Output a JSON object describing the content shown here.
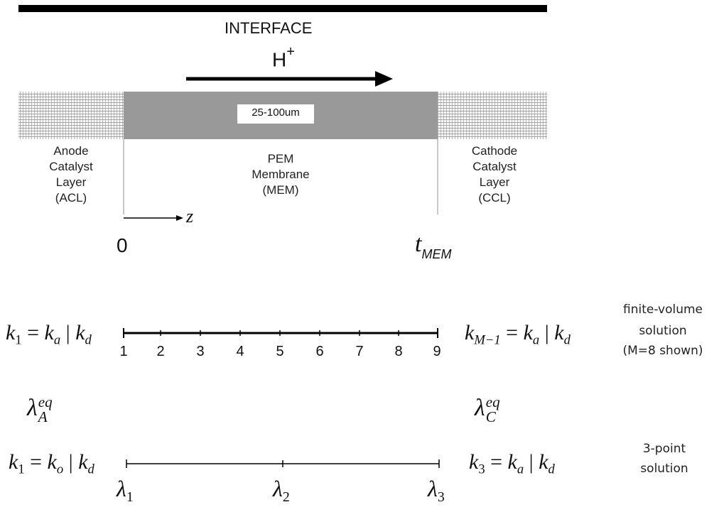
{
  "header": {
    "interface_label": "INTERFACE",
    "proton_label": "H",
    "proton_charge": "+"
  },
  "membrane": {
    "thickness_label": "25-100um"
  },
  "regions": {
    "anode": [
      "Anode",
      "Catalyst",
      "Layer",
      "(ACL)"
    ],
    "membrane": [
      "PEM",
      "Membrane",
      "(MEM)"
    ],
    "cathode": [
      "Cathode",
      "Catalyst",
      "Layer",
      "(CCL)"
    ]
  },
  "axis": {
    "variable": "z",
    "origin_label": "0",
    "end_label_base": "t",
    "end_label_sub": "MEM"
  },
  "finite_volume": {
    "left_bc": {
      "k": "k",
      "k_sub": "1",
      "eq": "=",
      "ka": "k",
      "ka_sub": "a",
      "sep": "|",
      "kd": "k",
      "kd_sub": "d"
    },
    "right_bc": {
      "k": "k",
      "k_sub": "M−1",
      "eq": "=",
      "ka": "k",
      "ka_sub": "a",
      "sep": "|",
      "kd": "k",
      "kd_sub": "d"
    },
    "node_numbers": [
      "1",
      "2",
      "3",
      "4",
      "5",
      "6",
      "7",
      "8",
      "9"
    ],
    "lambda_left": {
      "base": "λ",
      "sup": "eq",
      "sub": "A"
    },
    "lambda_right": {
      "base": "λ",
      "sup": "eq",
      "sub": "C"
    },
    "note": [
      "finite-volume",
      "solution",
      "(M=8 shown)"
    ]
  },
  "three_point": {
    "left_bc": {
      "k": "k",
      "k_sub": "1",
      "eq": "=",
      "ka": "k",
      "ka_sub": "o",
      "sep": "|",
      "kd": "k",
      "kd_sub": "d"
    },
    "right_bc": {
      "k": "k",
      "k_sub": "3",
      "eq": "=",
      "ka": "k",
      "ka_sub": "a",
      "sep": "|",
      "kd": "k",
      "kd_sub": "d"
    },
    "nodes": [
      {
        "base": "λ",
        "sub": "1"
      },
      {
        "base": "λ",
        "sub": "2"
      },
      {
        "base": "λ",
        "sub": "3"
      }
    ],
    "note": [
      "3-point",
      "solution"
    ]
  }
}
